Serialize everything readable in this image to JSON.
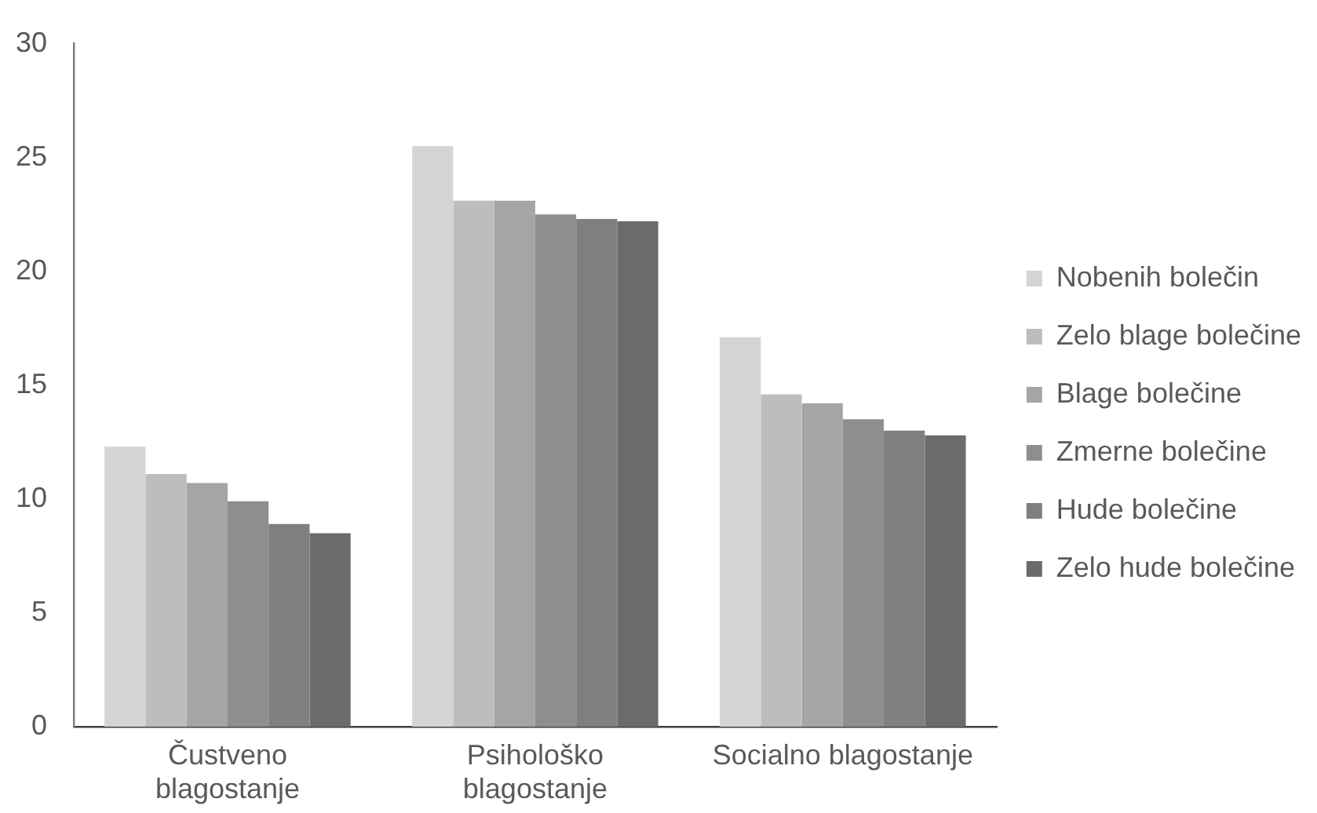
{
  "chart_data": {
    "type": "bar",
    "categories": [
      "Čustveno blagostanje",
      "Psihološko blagostanje",
      "Socialno blagostanje"
    ],
    "series": [
      {
        "name": "Nobenih bolečin",
        "color": "#d4d4d4",
        "values": [
          12.3,
          25.5,
          17.1
        ]
      },
      {
        "name": "Zelo blage bolečine",
        "color": "#bdbdbd",
        "values": [
          11.1,
          23.1,
          14.6
        ]
      },
      {
        "name": "Blage bolečine",
        "color": "#a5a5a5",
        "values": [
          10.7,
          23.1,
          14.2
        ]
      },
      {
        "name": "Zmerne bolečine",
        "color": "#8e8e8e",
        "values": [
          9.9,
          22.5,
          13.5
        ]
      },
      {
        "name": "Hude bolečine",
        "color": "#7f7f7f",
        "values": [
          8.9,
          22.3,
          13.0
        ]
      },
      {
        "name": "Zelo hude bolečine",
        "color": "#6b6b6b",
        "values": [
          8.5,
          22.2,
          12.8
        ]
      }
    ],
    "ylim": [
      0,
      30
    ],
    "yticks": [
      0,
      5,
      10,
      15,
      20,
      25,
      30
    ],
    "grid": false,
    "legend": "right"
  }
}
